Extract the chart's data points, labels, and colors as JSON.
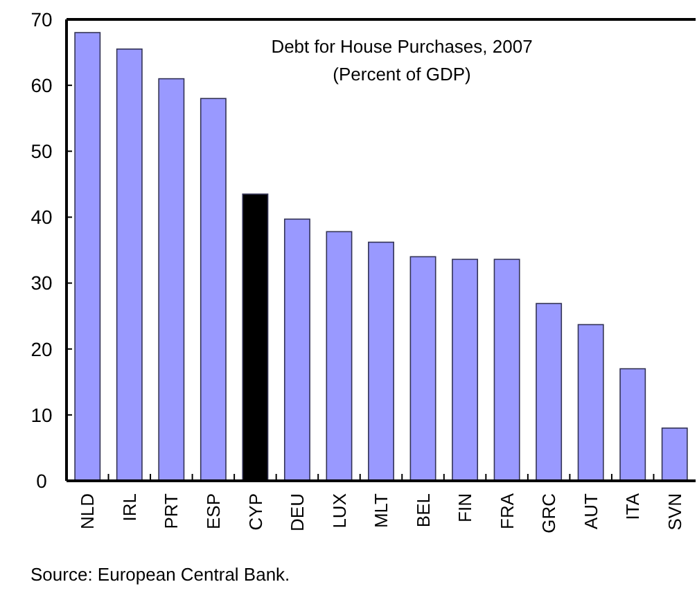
{
  "chart_data": {
    "type": "bar",
    "title": "Debt for House Purchases, 2007",
    "subtitle": "(Percent of GDP)",
    "categories": [
      "NLD",
      "IRL",
      "PRT",
      "ESP",
      "CYP",
      "DEU",
      "LUX",
      "MLT",
      "BEL",
      "FIN",
      "FRA",
      "GRC",
      "AUT",
      "ITA",
      "SVN"
    ],
    "values": [
      68,
      65.5,
      61,
      58,
      43.5,
      39.7,
      37.8,
      36.2,
      34,
      33.6,
      33.6,
      26.9,
      23.7,
      17,
      8
    ],
    "colors": [
      "#9999ff",
      "#9999ff",
      "#9999ff",
      "#9999ff",
      "#000000",
      "#9999ff",
      "#9999ff",
      "#9999ff",
      "#9999ff",
      "#9999ff",
      "#9999ff",
      "#9999ff",
      "#9999ff",
      "#9999ff",
      "#9999ff"
    ],
    "ylim": [
      0,
      70
    ],
    "yticks": [
      0,
      10,
      20,
      30,
      40,
      50,
      60,
      70
    ],
    "grid": false,
    "annotations": [
      "Source: European Central Bank."
    ]
  }
}
